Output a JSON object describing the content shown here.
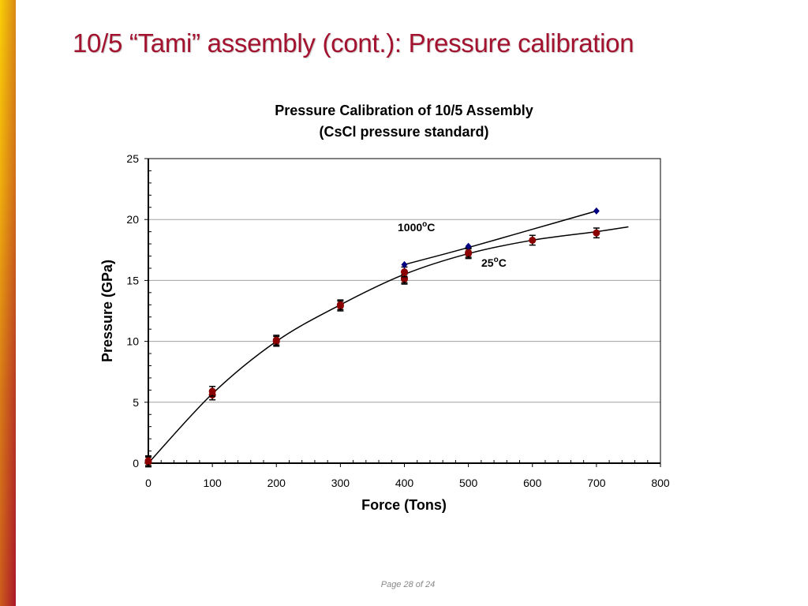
{
  "slide": {
    "title": "10/5 “Tami” assembly (cont.): Pressure calibration",
    "footer": "Page 28 of 24",
    "title_color": "#a3122e"
  },
  "chart_data": {
    "type": "scatter",
    "title_line1": "Pressure Calibration of 10/5 Assembly",
    "title_line2": "(CsCl pressure standard)",
    "xlabel": "Force (Tons)",
    "ylabel": "Pressure (GPa)",
    "xlim": [
      0,
      800
    ],
    "ylim": [
      0,
      25
    ],
    "xticks": [
      0,
      100,
      200,
      300,
      400,
      500,
      600,
      700,
      800
    ],
    "yticks": [
      0,
      5,
      10,
      15,
      20,
      25
    ],
    "grid": "horizontal",
    "series": [
      {
        "name": "25",
        "label_main": "25",
        "label_sup": "o",
        "label_unit": "C",
        "color": "#8b0000",
        "marker": "circle",
        "error": 0.4,
        "points": [
          [
            0,
            0.1
          ],
          [
            0,
            0.2
          ],
          [
            100,
            5.6
          ],
          [
            100,
            5.9
          ],
          [
            200,
            10.0
          ],
          [
            200,
            10.1
          ],
          [
            300,
            12.9
          ],
          [
            300,
            13.0
          ],
          [
            400,
            15.1
          ],
          [
            400,
            15.2
          ],
          [
            400,
            15.7
          ],
          [
            500,
            17.2
          ],
          [
            500,
            17.3
          ],
          [
            600,
            18.3
          ],
          [
            700,
            18.9
          ]
        ],
        "fit": [
          [
            0,
            0
          ],
          [
            100,
            5.7
          ],
          [
            200,
            10.0
          ],
          [
            300,
            13.0
          ],
          [
            400,
            15.5
          ],
          [
            500,
            17.2
          ],
          [
            600,
            18.3
          ],
          [
            700,
            19.0
          ],
          [
            750,
            19.4
          ]
        ]
      },
      {
        "name": "1000",
        "label_main": "1000",
        "label_sup": "o",
        "label_unit": "C",
        "color": "#000080",
        "marker": "diamond",
        "points": [
          [
            400,
            16.3
          ],
          [
            500,
            17.8
          ],
          [
            700,
            20.7
          ]
        ],
        "fit": [
          [
            400,
            16.3
          ],
          [
            500,
            17.7
          ],
          [
            600,
            19.2
          ],
          [
            700,
            20.7
          ]
        ]
      }
    ]
  }
}
